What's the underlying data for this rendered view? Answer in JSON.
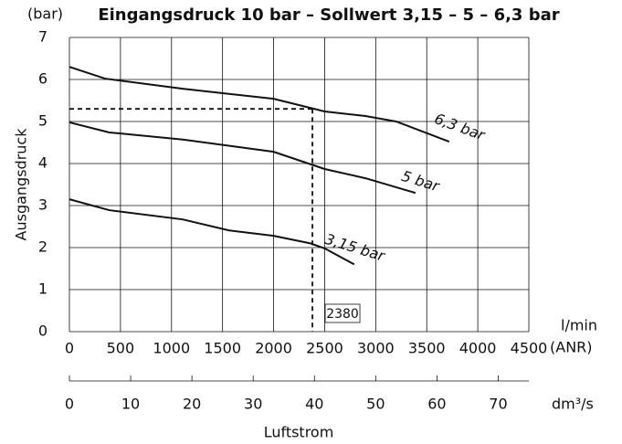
{
  "chart_data": {
    "type": "line",
    "title": "Eingangsdruck 10 bar – Sollwert 3,15 – 5 – 6,3 bar",
    "y_unit": "(bar)",
    "ylabel": "Ausgangsdruck",
    "x_unit": "l/min",
    "x_unit_note": "(ANR)",
    "x2_unit": "dm³/s",
    "xlabel": "Luftstrom",
    "xlim": [
      0,
      4500
    ],
    "xticks": [
      0,
      500,
      1000,
      1500,
      2000,
      2500,
      3000,
      3500,
      4000,
      4500
    ],
    "x2lim": [
      0,
      75
    ],
    "x2ticks": [
      0,
      10,
      20,
      30,
      40,
      50,
      60,
      70
    ],
    "ylim": [
      0,
      7
    ],
    "yticks": [
      0,
      1,
      2,
      3,
      4,
      5,
      6,
      7
    ],
    "grid": true,
    "series": [
      {
        "name": "6,3 bar",
        "color": "#111111",
        "x": [
          0,
          350,
          1110,
          2000,
          2500,
          2900,
          3200,
          3720
        ],
        "values": [
          6.3,
          6.02,
          5.78,
          5.54,
          5.24,
          5.13,
          5.0,
          4.52
        ]
      },
      {
        "name": "5 bar",
        "color": "#111111",
        "x": [
          0,
          390,
          1110,
          2000,
          2500,
          2900,
          3390
        ],
        "values": [
          4.98,
          4.74,
          4.57,
          4.28,
          3.87,
          3.65,
          3.3
        ]
      },
      {
        "name": "3,15 bar",
        "color": "#111111",
        "x": [
          0,
          390,
          1110,
          1560,
          2000,
          2360,
          2500,
          2790
        ],
        "values": [
          3.15,
          2.89,
          2.67,
          2.41,
          2.28,
          2.1,
          1.98,
          1.6
        ]
      }
    ],
    "reference": {
      "x": 2380,
      "y": 5.3
    }
  }
}
